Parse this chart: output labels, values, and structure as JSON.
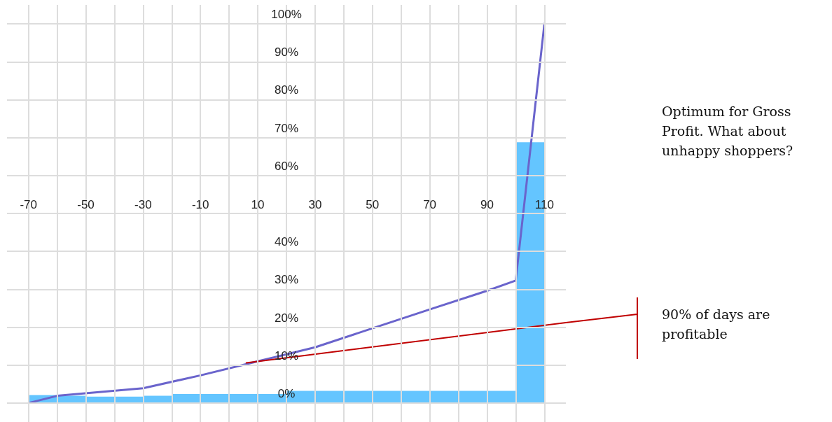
{
  "chart_data": {
    "type": "histogram",
    "xlim": [
      -77.5,
      117.5
    ],
    "xticks": [
      -70,
      {
        "value": -60,
        "label": null
      },
      -50,
      {
        "value": -40,
        "label": null
      },
      -30,
      {
        "value": -20,
        "label": null
      },
      -10,
      {
        "value": 0,
        "label": null
      },
      10,
      {
        "value": 20,
        "label": null
      },
      30,
      {
        "value": 40,
        "label": null
      },
      50,
      {
        "value": 60,
        "label": null
      },
      70,
      {
        "value": 80,
        "label": null
      },
      90,
      {
        "value": 100,
        "label": null
      },
      110
    ],
    "ylim": [
      -5,
      105
    ],
    "yticks": [
      {
        "value": 0,
        "label": "0%"
      },
      {
        "value": 10,
        "label": "10%"
      },
      {
        "value": 20,
        "label": "20%"
      },
      {
        "value": 30,
        "label": "30%"
      },
      {
        "value": 40,
        "label": "40%"
      },
      {
        "value": 50,
        "label": null
      },
      {
        "value": 60,
        "label": "60%"
      },
      {
        "value": 70,
        "label": "70%"
      },
      {
        "value": 80,
        "label": "80%"
      },
      {
        "value": 90,
        "label": "90%"
      },
      {
        "value": 100,
        "label": "100%"
      }
    ],
    "grid": true,
    "annotations": [
      "Optimum for Gross Profit. What about unhappy shoppers?",
      "90% of days are profitable"
    ],
    "series": [
      {
        "color": "#64c5ff",
        "bins": [
          -70,
          -60,
          -50,
          -30,
          -20,
          20,
          100,
          110
        ],
        "values": [
          2.1,
          1.9,
          1.7,
          1.9,
          2.4,
          3.2,
          68.8
        ]
      },
      {
        "type": "line",
        "color": "#6a64cc",
        "x": [
          -70,
          -60,
          -30,
          -10,
          10,
          30,
          50,
          70,
          90,
          100,
          110
        ],
        "values": [
          0,
          1.9,
          3.9,
          7.3,
          11,
          14.7,
          19.7,
          24.7,
          29.6,
          32.3,
          100
        ]
      },
      {
        "type": "line",
        "color": "#c00000",
        "x": [
          6,
          117.5
        ],
        "values": [
          10.6,
          21.2
        ]
      }
    ]
  }
}
